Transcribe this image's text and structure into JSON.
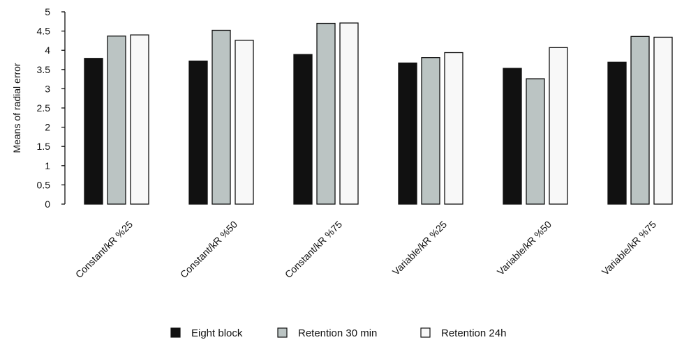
{
  "chart_data": {
    "type": "bar",
    "title": "",
    "xlabel": "",
    "ylabel": "Means of radial error",
    "ylim": [
      0,
      5
    ],
    "yticks": [
      "0",
      "0.5",
      "1",
      "1.5",
      "2",
      "2.5",
      "3",
      "3.5",
      "4",
      "4.5",
      "5"
    ],
    "grid": false,
    "legend_position": "bottom",
    "categories": [
      "Constant/kR %25",
      "Constant/kR %50",
      "Constant/kR %75",
      "Variable/kR %25",
      "Variable/kR %50",
      "Variable/kR %75"
    ],
    "series": [
      {
        "name": "Eight block",
        "color": "#111111",
        "values": [
          3.79,
          3.72,
          3.89,
          3.67,
          3.53,
          3.69
        ]
      },
      {
        "name": "Retention 30 min",
        "color": "#bbc4c3",
        "values": [
          4.37,
          4.52,
          4.7,
          3.81,
          3.26,
          4.36
        ]
      },
      {
        "name": "Retention 24h",
        "color": "#f8f8f8",
        "values": [
          4.4,
          4.26,
          4.71,
          3.94,
          4.07,
          4.34
        ]
      }
    ]
  }
}
